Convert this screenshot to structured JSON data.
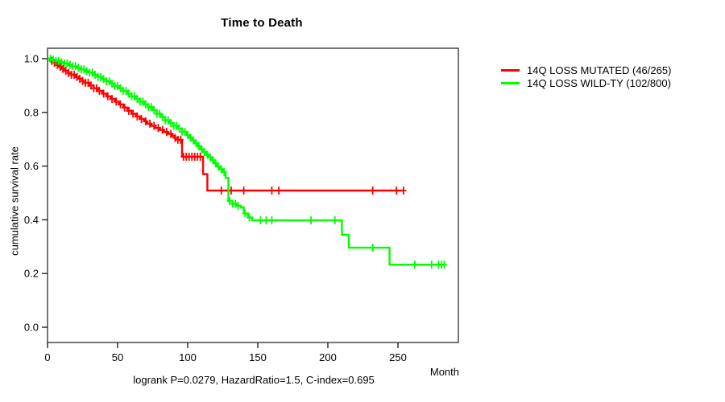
{
  "chart_data": {
    "type": "line",
    "subtype": "kaplan-meier-step",
    "title": "Time to Death",
    "xlabel": "Month",
    "ylabel": "cumulative survival rate",
    "footnote": "logrank P=0.0279, HazardRatio=1.5, C-index=0.695",
    "x_ticks": [
      0,
      50,
      100,
      150,
      200,
      250
    ],
    "x_tick_labels": [
      "0",
      "50",
      "100",
      "150",
      "200",
      "250"
    ],
    "y_ticks": [
      1.0,
      0.8,
      0.6,
      0.4,
      0.2,
      0.0
    ],
    "y_tick_labels": [
      "1.0",
      "0.8",
      "0.6",
      "0.4",
      "0.2",
      "0.0"
    ],
    "xlim": [
      0,
      293
    ],
    "ylim": [
      -0.057,
      1.039
    ],
    "grid": false,
    "legend_position": "right-outside",
    "frame_color": "#3a3a3a",
    "series": [
      {
        "name": "14Q LOSS MUTATED (46/265)",
        "color": "#ff0000",
        "end_month": 254,
        "steps": [
          [
            0,
            1.0
          ],
          [
            2,
            0.992
          ],
          [
            4,
            0.985
          ],
          [
            6,
            0.977
          ],
          [
            8,
            0.97
          ],
          [
            10,
            0.962
          ],
          [
            12,
            0.955
          ],
          [
            15,
            0.947
          ],
          [
            17,
            0.94
          ],
          [
            20,
            0.932
          ],
          [
            22,
            0.925
          ],
          [
            25,
            0.917
          ],
          [
            27,
            0.91
          ],
          [
            30,
            0.9
          ],
          [
            33,
            0.89
          ],
          [
            36,
            0.88
          ],
          [
            39,
            0.87
          ],
          [
            42,
            0.86
          ],
          [
            45,
            0.85
          ],
          [
            48,
            0.84
          ],
          [
            51,
            0.83
          ],
          [
            54,
            0.818
          ],
          [
            57,
            0.806
          ],
          [
            60,
            0.795
          ],
          [
            63,
            0.785
          ],
          [
            66,
            0.775
          ],
          [
            69,
            0.767
          ],
          [
            71,
            0.758
          ],
          [
            74,
            0.75
          ],
          [
            77,
            0.742
          ],
          [
            80,
            0.735
          ],
          [
            83,
            0.727
          ],
          [
            86,
            0.72
          ],
          [
            89,
            0.712
          ],
          [
            91,
            0.705
          ],
          [
            93,
            0.698
          ],
          [
            96,
            0.635
          ],
          [
            111,
            0.57
          ],
          [
            114,
            0.509
          ]
        ],
        "censor_months": [
          3,
          5,
          7,
          9,
          11,
          13,
          15,
          17,
          19,
          21,
          23,
          25,
          27,
          29,
          31,
          33,
          35,
          37,
          40,
          43,
          46,
          49,
          52,
          55,
          58,
          61,
          64,
          67,
          70,
          73,
          76,
          79,
          82,
          85,
          88,
          91,
          93,
          95,
          97,
          99,
          101,
          103,
          105,
          107,
          109,
          124,
          131,
          140,
          160,
          165,
          232,
          249,
          254
        ]
      },
      {
        "name": "14Q LOSS WILD-TY (102/800)",
        "color": "#00ff00",
        "end_month": 283,
        "steps": [
          [
            0,
            1.0
          ],
          [
            3,
            0.996
          ],
          [
            6,
            0.992
          ],
          [
            9,
            0.987
          ],
          [
            12,
            0.982
          ],
          [
            15,
            0.977
          ],
          [
            18,
            0.972
          ],
          [
            21,
            0.966
          ],
          [
            24,
            0.96
          ],
          [
            27,
            0.954
          ],
          [
            30,
            0.948
          ],
          [
            33,
            0.94
          ],
          [
            36,
            0.932
          ],
          [
            39,
            0.924
          ],
          [
            42,
            0.916
          ],
          [
            45,
            0.907
          ],
          [
            48,
            0.898
          ],
          [
            51,
            0.89
          ],
          [
            54,
            0.88
          ],
          [
            57,
            0.87
          ],
          [
            60,
            0.86
          ],
          [
            63,
            0.85
          ],
          [
            66,
            0.84
          ],
          [
            69,
            0.83
          ],
          [
            72,
            0.82
          ],
          [
            75,
            0.808
          ],
          [
            78,
            0.795
          ],
          [
            81,
            0.783
          ],
          [
            84,
            0.771
          ],
          [
            87,
            0.76
          ],
          [
            90,
            0.75
          ],
          [
            93,
            0.74
          ],
          [
            96,
            0.728
          ],
          [
            99,
            0.716
          ],
          [
            101,
            0.706
          ],
          [
            103,
            0.696
          ],
          [
            105,
            0.685
          ],
          [
            107,
            0.674
          ],
          [
            109,
            0.663
          ],
          [
            111,
            0.652
          ],
          [
            113,
            0.642
          ],
          [
            115,
            0.633
          ],
          [
            117,
            0.622
          ],
          [
            119,
            0.61
          ],
          [
            121,
            0.598
          ],
          [
            123,
            0.588
          ],
          [
            125,
            0.578
          ],
          [
            127,
            0.556
          ],
          [
            129,
            0.47
          ],
          [
            132,
            0.46
          ],
          [
            135,
            0.452
          ],
          [
            138,
            0.446
          ],
          [
            140,
            0.424
          ],
          [
            143,
            0.409
          ],
          [
            146,
            0.398
          ],
          [
            210,
            0.344
          ],
          [
            215,
            0.296
          ],
          [
            244,
            0.233
          ]
        ],
        "censor_months": [
          2,
          4,
          6,
          8,
          10,
          12,
          14,
          16,
          18,
          20,
          22,
          24,
          26,
          28,
          30,
          32,
          34,
          36,
          38,
          40,
          42,
          44,
          46,
          48,
          50,
          52,
          54,
          56,
          58,
          60,
          62,
          64,
          66,
          68,
          70,
          72,
          74,
          76,
          78,
          80,
          82,
          84,
          86,
          88,
          90,
          92,
          94,
          96,
          98,
          100,
          102,
          104,
          106,
          108,
          110,
          112,
          114,
          116,
          118,
          120,
          122,
          124,
          126,
          130,
          132,
          134,
          136,
          141,
          144,
          152,
          156,
          160,
          188,
          205,
          232,
          262,
          274,
          279,
          281,
          283
        ]
      }
    ]
  }
}
